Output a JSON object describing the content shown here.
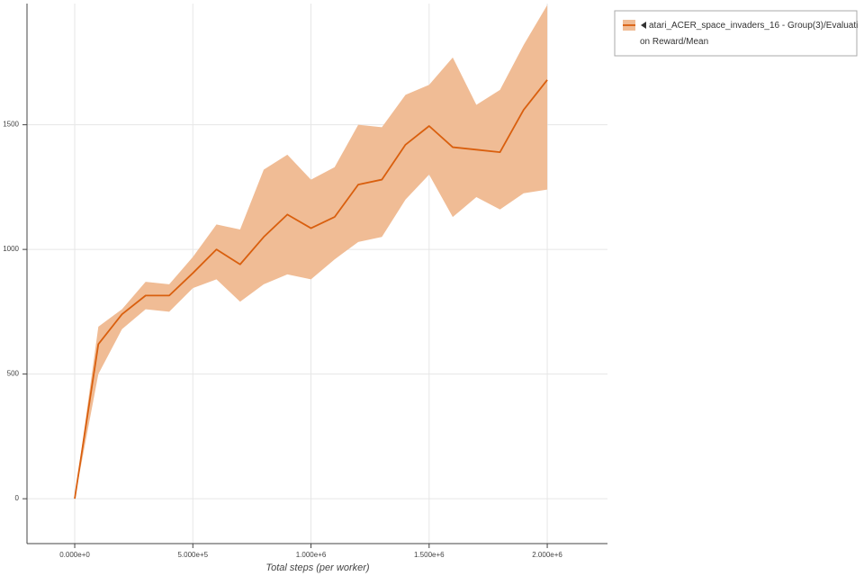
{
  "chart_data": {
    "type": "band-line",
    "x_label": "Total steps (per worker)",
    "x": [
      0,
      100000,
      200000,
      300000,
      400000,
      500000,
      600000,
      700000,
      800000,
      900000,
      1000000,
      1100000,
      1200000,
      1300000,
      1400000,
      1500000,
      1600000,
      1700000,
      1800000,
      1900000,
      2000000
    ],
    "series": [
      {
        "name": "atari_ACER_space_invaders_16 - Group(3)/Evaluation Reward/Mean",
        "color": "#d95f0e",
        "band_color": "#f0bc95",
        "values": [
          0,
          620,
          740,
          815,
          815,
          905,
          1000,
          940,
          1050,
          1140,
          1085,
          1130,
          1260,
          1280,
          1420,
          1495,
          1410,
          1400,
          1390,
          1560,
          1680
        ],
        "upper": [
          0,
          690,
          760,
          870,
          860,
          970,
          1100,
          1080,
          1320,
          1380,
          1280,
          1330,
          1500,
          1490,
          1620,
          1660,
          1770,
          1580,
          1640,
          1820,
          1980
        ],
        "lower": [
          0,
          500,
          680,
          760,
          750,
          845,
          880,
          790,
          860,
          900,
          880,
          960,
          1030,
          1050,
          1200,
          1300,
          1130,
          1210,
          1160,
          1225,
          1240
        ]
      }
    ],
    "xlim": [
      -202000,
      2255000
    ],
    "ylim": [
      -180,
      1986
    ],
    "xticks": [
      {
        "value": 0,
        "label": "0.000e+0"
      },
      {
        "value": 500000,
        "label": "5.000e+5"
      },
      {
        "value": 1000000,
        "label": "1.000e+6"
      },
      {
        "value": 1500000,
        "label": "1.500e+6"
      },
      {
        "value": 2000000,
        "label": "2.000e+6"
      }
    ],
    "yticks": [
      0,
      500,
      1000,
      1500
    ],
    "grid": true,
    "legend": "outside-right-top"
  }
}
